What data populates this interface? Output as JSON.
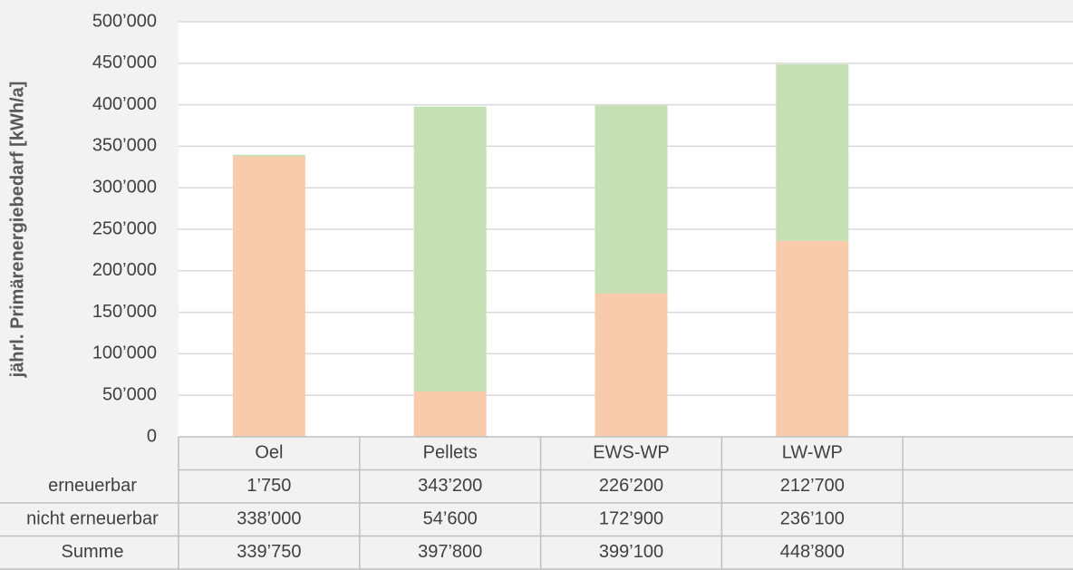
{
  "chart_data": {
    "type": "stacked_bar",
    "y_label": "jährl. Primärenergiebedarf [kWh/a]",
    "categories": [
      "Oel",
      "Pellets",
      "EWS-WP",
      "LW-WP",
      null
    ],
    "series": [
      {
        "name": "erneuerbar",
        "color": "#c5e0b4",
        "values": [
          1750,
          343200,
          226200,
          212700,
          null
        ],
        "value_labels": [
          "1’750",
          "343’200",
          "226’200",
          "212’700",
          null
        ]
      },
      {
        "name": "nicht erneuerbar",
        "color": "#f8cbad",
        "values": [
          338000,
          54600,
          172900,
          236100,
          null
        ],
        "value_labels": [
          "338’000",
          "54’600",
          "172’900",
          "236’100",
          null
        ]
      }
    ],
    "totals": {
      "name": "Summe",
      "values": [
        339750,
        397800,
        399100,
        448800,
        null
      ],
      "value_labels": [
        "339’750",
        "397’800",
        "399’100",
        "448’800",
        null
      ]
    },
    "ylim": [
      0,
      500000
    ],
    "yticks": [
      0,
      {
        "value": 50000,
        "label": "50’000"
      },
      {
        "value": 100000,
        "label": "100’000"
      },
      {
        "value": 150000,
        "label": "150’000"
      },
      {
        "value": 200000,
        "label": "200’000"
      },
      {
        "value": 250000,
        "label": "250’000"
      },
      {
        "value": 300000,
        "label": "300’000"
      },
      {
        "value": 350000,
        "label": "350’000"
      },
      {
        "value": 400000,
        "label": "400’000"
      },
      {
        "value": 450000,
        "label": "450’000"
      },
      {
        "value": 500000,
        "label": "500’000"
      }
    ],
    "grid": true
  }
}
